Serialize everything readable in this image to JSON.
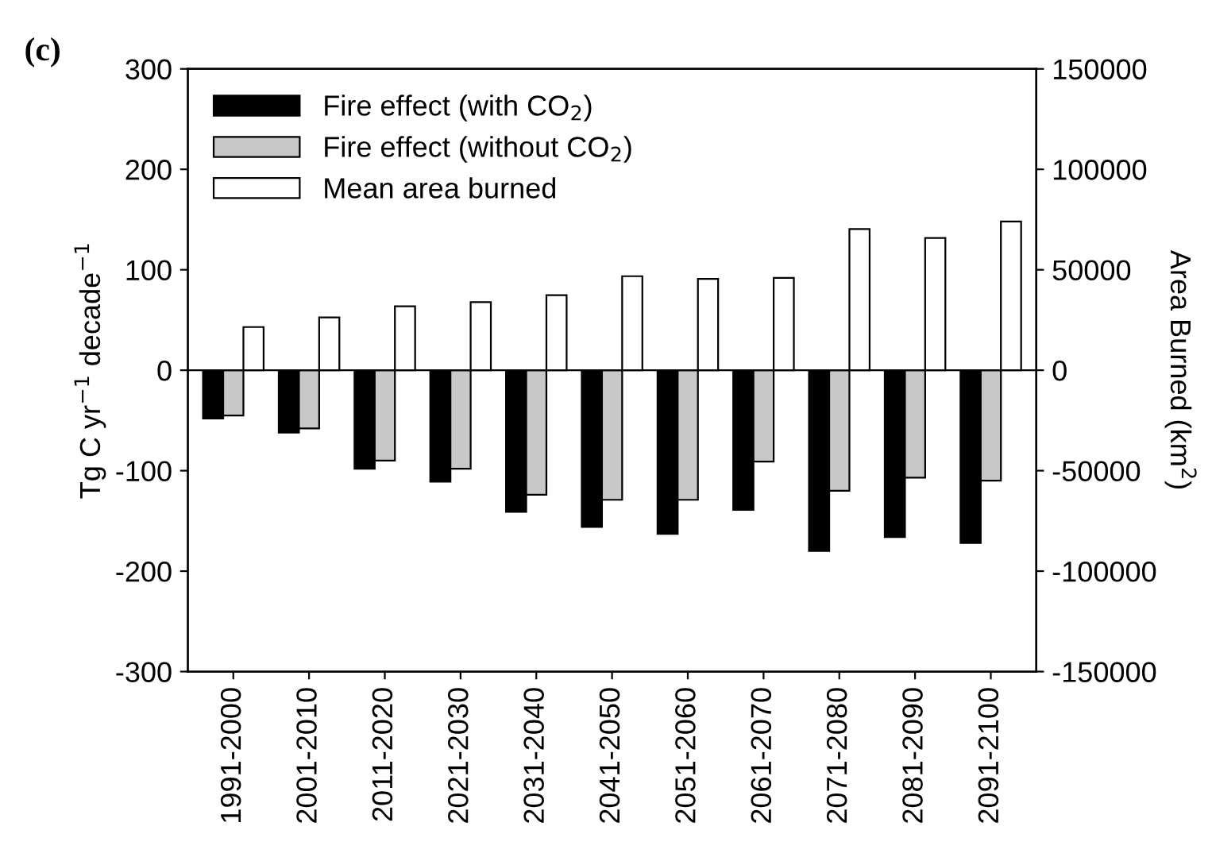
{
  "chart_data": {
    "type": "bar",
    "title": "(c)",
    "ylabel": "Tg C yr$^{−1}$ decade$^{−1}$",
    "y2label": "Area Burned (km$^{2}$)",
    "categories": [
      "1991-2000",
      "2001-2010",
      "2011-2020",
      "2021-2030",
      "2031-2040",
      "2041-2050",
      "2051-2060",
      "2061-2070",
      "2071-2080",
      "2081-2090",
      "2091-2100"
    ],
    "series": [
      {
        "name": "Fire effect (with CO$_{2}$)",
        "color": "#000000",
        "values": [
          -48,
          -62,
          -98,
          -111,
          -141,
          -156,
          -163,
          -139,
          -180,
          -166,
          -172
        ]
      },
      {
        "name": "Fire effect (without CO$_{2}$)",
        "color": "#c8c8c8",
        "values": [
          -45,
          -58,
          -90,
          -98,
          -124,
          -129,
          -129,
          -91,
          -120,
          -107,
          -110
        ]
      },
      {
        "name": "Mean area burned",
        "color": "#ffffff",
        "axis": "y2",
        "values": [
          21500,
          26300,
          31800,
          33900,
          37400,
          46800,
          45500,
          46000,
          70300,
          65800,
          74000
        ]
      }
    ],
    "ylim": [
      -300,
      300
    ],
    "yticks": [
      -300,
      -200,
      -100,
      0,
      100,
      200,
      300
    ],
    "y2lim": [
      -150000,
      150000
    ],
    "y2ticks": [
      -150000,
      -100000,
      -50000,
      0,
      50000,
      100000,
      150000
    ],
    "ref_lines": [
      {
        "axis": "y",
        "value": 0,
        "color": "#000000"
      }
    ],
    "grid": false,
    "legend": "top left"
  }
}
